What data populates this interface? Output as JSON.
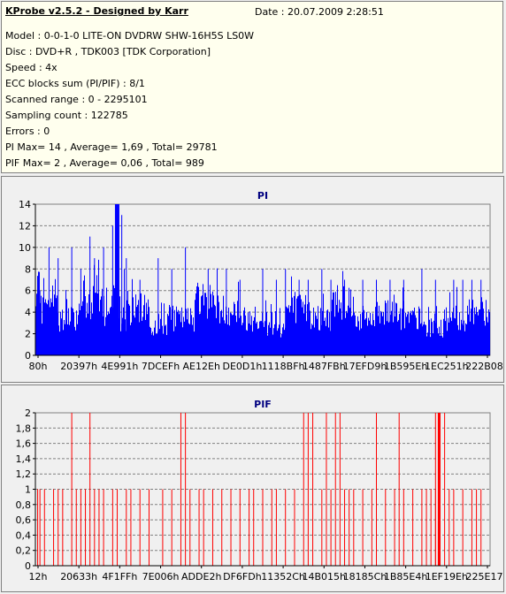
{
  "header": {
    "title": "KProbe v2.5.2 - Designed by Karr",
    "date": "Date : 20.07.2009 2:28:51",
    "lines": [
      "Model : 0-0-1-0 LITE-ON DVDRW SHW-16H5S  LS0W",
      "Disc : DVD+R , TDK003 [TDK Corporation]",
      "Speed : 4x",
      "ECC blocks sum (PI/PIF) : 8/1",
      "Scanned range : 0 - 2295101",
      "Sampling count : 122785",
      "Errors : 0",
      "PI Max= 14 , Average= 1,69 , Total= 29781",
      "PIF Max= 2 , Average= 0,06 , Total= 989"
    ]
  },
  "colors": {
    "pi": "#0000ff",
    "pif": "#ff0000",
    "title": "#000080",
    "plot_bg": "#f0f0f0"
  },
  "chart_data": [
    {
      "type": "bar",
      "title": "PI",
      "ylim": [
        0,
        14
      ],
      "yticks": [
        "0",
        "2",
        "4",
        "6",
        "8",
        "10",
        "12",
        "14"
      ],
      "ytick_values": [
        0,
        2,
        4,
        6,
        8,
        10,
        12,
        14
      ],
      "xtick_labels": [
        "80h",
        "20397h",
        "4E991h",
        "7DCEFh",
        "AE12Eh",
        "DE0D1h",
        "1118BFh",
        "1487FBh",
        "17EFD9h",
        "1B595Eh",
        "1EC251h",
        "222B08h"
      ],
      "baseline_values": [
        5,
        4,
        6,
        4,
        5,
        3,
        4,
        6,
        5,
        4,
        3,
        5,
        4,
        6,
        4,
        5,
        4,
        3,
        4,
        5
      ],
      "peaks": [
        [
          0.01,
          6
        ],
        [
          0.03,
          10
        ],
        [
          0.05,
          9
        ],
        [
          0.08,
          10
        ],
        [
          0.1,
          8
        ],
        [
          0.12,
          11
        ],
        [
          0.13,
          9
        ],
        [
          0.15,
          10
        ],
        [
          0.17,
          12
        ],
        [
          0.18,
          14
        ],
        [
          0.19,
          13
        ],
        [
          0.2,
          9
        ],
        [
          0.23,
          7
        ],
        [
          0.27,
          9
        ],
        [
          0.3,
          8
        ],
        [
          0.33,
          10
        ],
        [
          0.38,
          8
        ],
        [
          0.42,
          8
        ],
        [
          0.45,
          7
        ],
        [
          0.5,
          8
        ],
        [
          0.53,
          7
        ],
        [
          0.55,
          8
        ],
        [
          0.58,
          7
        ],
        [
          0.6,
          7
        ],
        [
          0.63,
          8
        ],
        [
          0.65,
          7
        ],
        [
          0.68,
          7
        ],
        [
          0.72,
          7
        ],
        [
          0.75,
          7
        ],
        [
          0.78,
          7
        ],
        [
          0.81,
          7
        ],
        [
          0.85,
          8
        ],
        [
          0.88,
          7
        ],
        [
          0.92,
          7
        ],
        [
          0.94,
          7
        ],
        [
          0.96,
          7
        ],
        [
          0.98,
          7
        ]
      ],
      "max": 14,
      "average": 1.69
    },
    {
      "type": "bar",
      "title": "PIF",
      "ylim": [
        0,
        2
      ],
      "yticks": [
        "0",
        "0,2",
        "0,4",
        "0,6",
        "0,8",
        "1",
        "1,2",
        "1,4",
        "1,6",
        "1,8",
        "2"
      ],
      "ytick_values": [
        0,
        0.2,
        0.4,
        0.6,
        0.8,
        1,
        1.2,
        1.4,
        1.6,
        1.8,
        2
      ],
      "xtick_labels": [
        "12h",
        "20633h",
        "4F1FFh",
        "7E006h",
        "ADDE2h",
        "DF6FDh",
        "11352Ch",
        "14B015h",
        "18185Ch",
        "1B85E4h",
        "1EF19Eh",
        "225E17h"
      ],
      "bars_value_2": [
        0.08,
        0.12,
        0.32,
        0.33,
        0.59,
        0.6,
        0.61,
        0.64,
        0.66,
        0.67,
        0.75,
        0.8,
        0.88,
        0.89,
        0.9
      ],
      "bars_value_1": [
        0.005,
        0.01,
        0.02,
        0.04,
        0.05,
        0.06,
        0.09,
        0.1,
        0.11,
        0.13,
        0.14,
        0.15,
        0.17,
        0.18,
        0.2,
        0.21,
        0.23,
        0.25,
        0.28,
        0.3,
        0.34,
        0.36,
        0.37,
        0.39,
        0.41,
        0.43,
        0.45,
        0.47,
        0.48,
        0.5,
        0.52,
        0.53,
        0.55,
        0.57,
        0.63,
        0.65,
        0.68,
        0.69,
        0.7,
        0.72,
        0.74,
        0.77,
        0.79,
        0.81,
        0.83,
        0.85,
        0.86,
        0.87,
        0.88,
        0.91,
        0.92,
        0.94,
        0.96,
        0.97,
        0.98
      ],
      "max": 2,
      "average": 0.06
    }
  ]
}
